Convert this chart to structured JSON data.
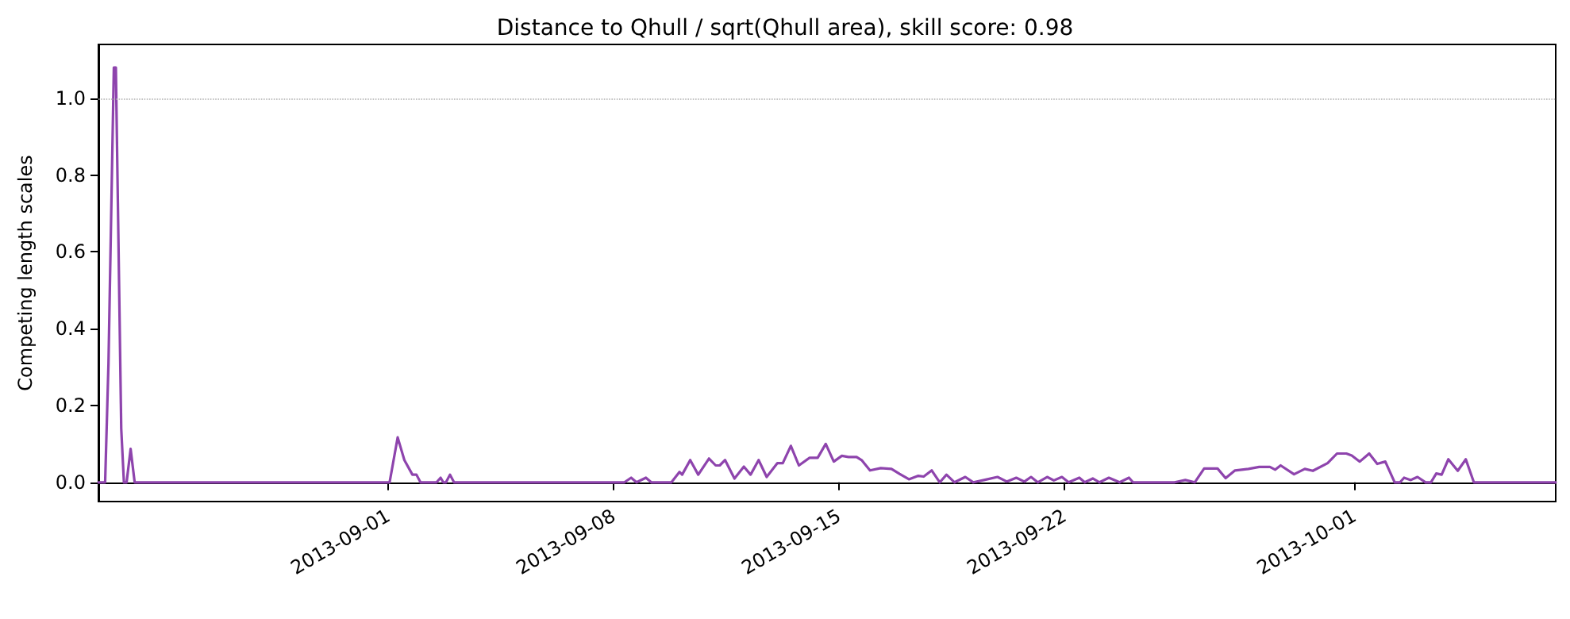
{
  "chart_data": {
    "type": "line",
    "title": "Distance to Qhull / sqrt(Qhull area), skill score: 0.98",
    "ylabel": "Competing length scales",
    "x": [
      "2013-08-23T00:00",
      "2013-08-23T05:00",
      "2013-08-23T07:30",
      "2013-08-23T11:30",
      "2013-08-23T13:00",
      "2013-08-23T17:00",
      "2013-08-23T19:00",
      "2013-08-23T21:00",
      "2013-08-24T00:00",
      "2013-08-24T03:00",
      "2013-09-01T01:00",
      "2013-09-01T07:00",
      "2013-09-01T12:00",
      "2013-09-01T18:00",
      "2013-09-01T21:00",
      "2013-09-02T00:00",
      "2013-09-02T12:00",
      "2013-09-02T15:00",
      "2013-09-02T17:00",
      "2013-09-02T19:00",
      "2013-09-02T22:00",
      "2013-09-03T01:00",
      "2013-09-08T08:00",
      "2013-09-08T13:00",
      "2013-09-08T17:00",
      "2013-09-09T00:00",
      "2013-09-09T04:00",
      "2013-09-09T19:00",
      "2013-09-10T01:00",
      "2013-09-10T03:00",
      "2013-09-10T09:00",
      "2013-09-10T15:00",
      "2013-09-10T23:00",
      "2013-09-11T04:00",
      "2013-09-11T07:00",
      "2013-09-11T11:00",
      "2013-09-11T18:00",
      "2013-09-12T01:00",
      "2013-09-12T06:00",
      "2013-09-12T12:00",
      "2013-09-12T18:00",
      "2013-09-13T02:00",
      "2013-09-13T06:00",
      "2013-09-13T12:00",
      "2013-09-13T18:00",
      "2013-09-14T02:00",
      "2013-09-14T08:00",
      "2013-09-14T14:00",
      "2013-09-14T20:00",
      "2013-09-15T02:00",
      "2013-09-15T07:00",
      "2013-09-15T13:00",
      "2013-09-15T17:00",
      "2013-09-15T23:00",
      "2013-09-16T07:00",
      "2013-09-16T15:00",
      "2013-09-16T21:00",
      "2013-09-17T04:00",
      "2013-09-17T11:00",
      "2013-09-17T15:00",
      "2013-09-17T21:00",
      "2013-09-18T03:00",
      "2013-09-18T08:00",
      "2013-09-18T14:00",
      "2013-09-18T22:00",
      "2013-09-19T04:00",
      "2013-09-19T12:00",
      "2013-09-19T22:00",
      "2013-09-20T05:00",
      "2013-09-20T12:00",
      "2013-09-20T18:00",
      "2013-09-20T23:00",
      "2013-09-21T04:00",
      "2013-09-21T11:00",
      "2013-09-21T16:00",
      "2013-09-21T22:00",
      "2013-09-22T03:00",
      "2013-09-22T11:00",
      "2013-09-22T15:00",
      "2013-09-22T21:00",
      "2013-09-23T02:00",
      "2013-09-23T09:00",
      "2013-09-23T17:00",
      "2013-09-24T00:00",
      "2013-09-24T03:00",
      "2013-09-25T10:00",
      "2013-09-25T18:00",
      "2013-09-26T01:00",
      "2013-09-26T08:00",
      "2013-09-26T18:00",
      "2013-09-27T00:00",
      "2013-09-27T07:00",
      "2013-09-27T17:00",
      "2013-09-28T01:00",
      "2013-09-28T09:00",
      "2013-09-28T13:00",
      "2013-09-28T17:00",
      "2013-09-29T03:00",
      "2013-09-29T11:00",
      "2013-09-29T17:00",
      "2013-09-30T04:00",
      "2013-09-30T11:00",
      "2013-09-30T18:00",
      "2013-09-30T22:00",
      "2013-10-01T04:00",
      "2013-10-01T11:00",
      "2013-10-01T17:00",
      "2013-10-01T23:00",
      "2013-10-02T06:00",
      "2013-10-02T10:00",
      "2013-10-02T13:00",
      "2013-10-02T18:00",
      "2013-10-02T23:00",
      "2013-10-03T05:00",
      "2013-10-03T09:00",
      "2013-10-03T13:00",
      "2013-10-03T17:00",
      "2013-10-03T22:00",
      "2013-10-04T05:00",
      "2013-10-04T11:00",
      "2013-10-04T17:00",
      "2013-10-07T06:00"
    ],
    "series": [
      {
        "color": "#8e44ad",
        "values": [
          0,
          0,
          0.31,
          1.08,
          1.08,
          0.14,
          0,
          0,
          0.087,
          0,
          0,
          0.117,
          0.058,
          0.02,
          0.02,
          0,
          0,
          0.012,
          0,
          0,
          0.02,
          0,
          0,
          0.012,
          0,
          0.012,
          0,
          0,
          0.027,
          0.02,
          0.058,
          0.02,
          0.062,
          0.044,
          0.044,
          0.058,
          0.01,
          0.041,
          0.02,
          0.058,
          0.014,
          0.05,
          0.05,
          0.095,
          0.044,
          0.064,
          0.064,
          0.1,
          0.054,
          0.069,
          0.066,
          0.066,
          0.057,
          0.031,
          0.037,
          0.035,
          0.022,
          0.008,
          0.017,
          0.015,
          0.031,
          0,
          0.02,
          0,
          0.014,
          0,
          0.006,
          0.014,
          0.002,
          0.012,
          0.002,
          0.014,
          0,
          0.014,
          0.005,
          0.014,
          0,
          0.012,
          0,
          0.01,
          0,
          0.012,
          0,
          0.012,
          0,
          0,
          0.006,
          0,
          0.036,
          0.036,
          0.011,
          0.031,
          0.035,
          0.04,
          0.04,
          0.033,
          0.044,
          0.021,
          0.035,
          0.03,
          0.05,
          0.075,
          0.075,
          0.07,
          0.054,
          0.075,
          0.048,
          0.054,
          0,
          0,
          0.012,
          0.006,
          0.014,
          0,
          0,
          0.023,
          0.02,
          0.06,
          0.03,
          0.06,
          0,
          0
        ]
      }
    ],
    "xlim": [
      "2013-08-23T00:00",
      "2013-10-07T06:00"
    ],
    "xticks": [
      "2013-09-01",
      "2013-09-08",
      "2013-09-15",
      "2013-09-22",
      "2013-10-01"
    ],
    "ylim": [
      -0.05,
      1.14
    ],
    "yticks": [
      {
        "value": 0,
        "label": "0.0"
      },
      {
        "value": 0.2,
        "label": "0.2"
      },
      {
        "value": 0.4,
        "label": "0.4"
      },
      {
        "value": 0.6,
        "label": "0.6"
      },
      {
        "value": 0.8,
        "label": "0.8"
      },
      {
        "value": 1,
        "label": "1.0"
      }
    ],
    "ref_lines": [
      {
        "axis": "y",
        "value": 1,
        "color": "#b0b0b0",
        "line_style": "dotted"
      }
    ],
    "grid": false,
    "marker": "none",
    "line_style": "solid"
  }
}
